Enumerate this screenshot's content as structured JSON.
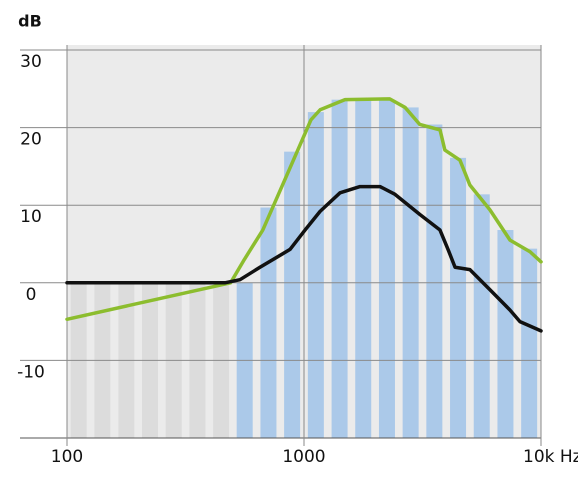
{
  "chart_data": {
    "type": "bar-line",
    "y_label": "dB",
    "xscale": "log",
    "xlim": [
      100,
      10000
    ],
    "xticks": [
      100,
      1000,
      {
        "value": 10000,
        "label": "10k Hz"
      }
    ],
    "ylim": [
      -20,
      30
    ],
    "yticks": [
      -10,
      0,
      10,
      20,
      30
    ],
    "grid": true,
    "bars": {
      "x": [
        112,
        141,
        178,
        224,
        282,
        355,
        447,
        562,
        708,
        891,
        1122,
        1413,
        1778,
        2239,
        2818,
        3548,
        4467,
        5623,
        7079,
        8913
      ],
      "values": [
        0,
        0,
        0,
        0,
        0,
        0,
        0,
        0,
        9.7,
        16.9,
        22,
        23.6,
        23.6,
        23.6,
        22.6,
        20.4,
        16.1,
        11.4,
        6.8,
        4.4
      ],
      "colors": [
        "#dcdcdc",
        "#dcdcdc",
        "#dcdcdc",
        "#dcdcdc",
        "#dcdcdc",
        "#dcdcdc",
        "#dcdcdc",
        "#abc9e9",
        "#abc9e9",
        "#abc9e9",
        "#abc9e9",
        "#abc9e9",
        "#abc9e9",
        "#abc9e9",
        "#abc9e9",
        "#abc9e9",
        "#abc9e9",
        "#abc9e9",
        "#abc9e9",
        "#abc9e9"
      ]
    },
    "lines": [
      {
        "color": "#8cbd2e",
        "x": [
          100,
          490,
          560,
          670,
          850,
          1070,
          1170,
          1490,
          2300,
          2670,
          3080,
          3750,
          3930,
          4550,
          5010,
          6090,
          7400,
          8990,
          10000
        ],
        "values": [
          -4.7,
          0,
          3,
          6.8,
          14,
          21,
          22.3,
          23.6,
          23.7,
          22.6,
          20.4,
          19.7,
          17.1,
          15.8,
          12.6,
          9.4,
          5.5,
          4,
          2.7
        ]
      },
      {
        "color": "#111111",
        "x": [
          100,
          464,
          537,
          652,
          873,
          1010,
          1169,
          1419,
          1723,
          2093,
          2421,
          3083,
          3748,
          4053,
          4339,
          5012,
          6090,
          7395,
          8150,
          10000
        ],
        "values": [
          0,
          0,
          0.4,
          2,
          4.3,
          6.8,
          9.2,
          11.6,
          12.4,
          12.4,
          11.4,
          8.8,
          6.8,
          4.3,
          2,
          1.7,
          -0.9,
          -3.5,
          -5,
          -6.2
        ]
      }
    ]
  }
}
